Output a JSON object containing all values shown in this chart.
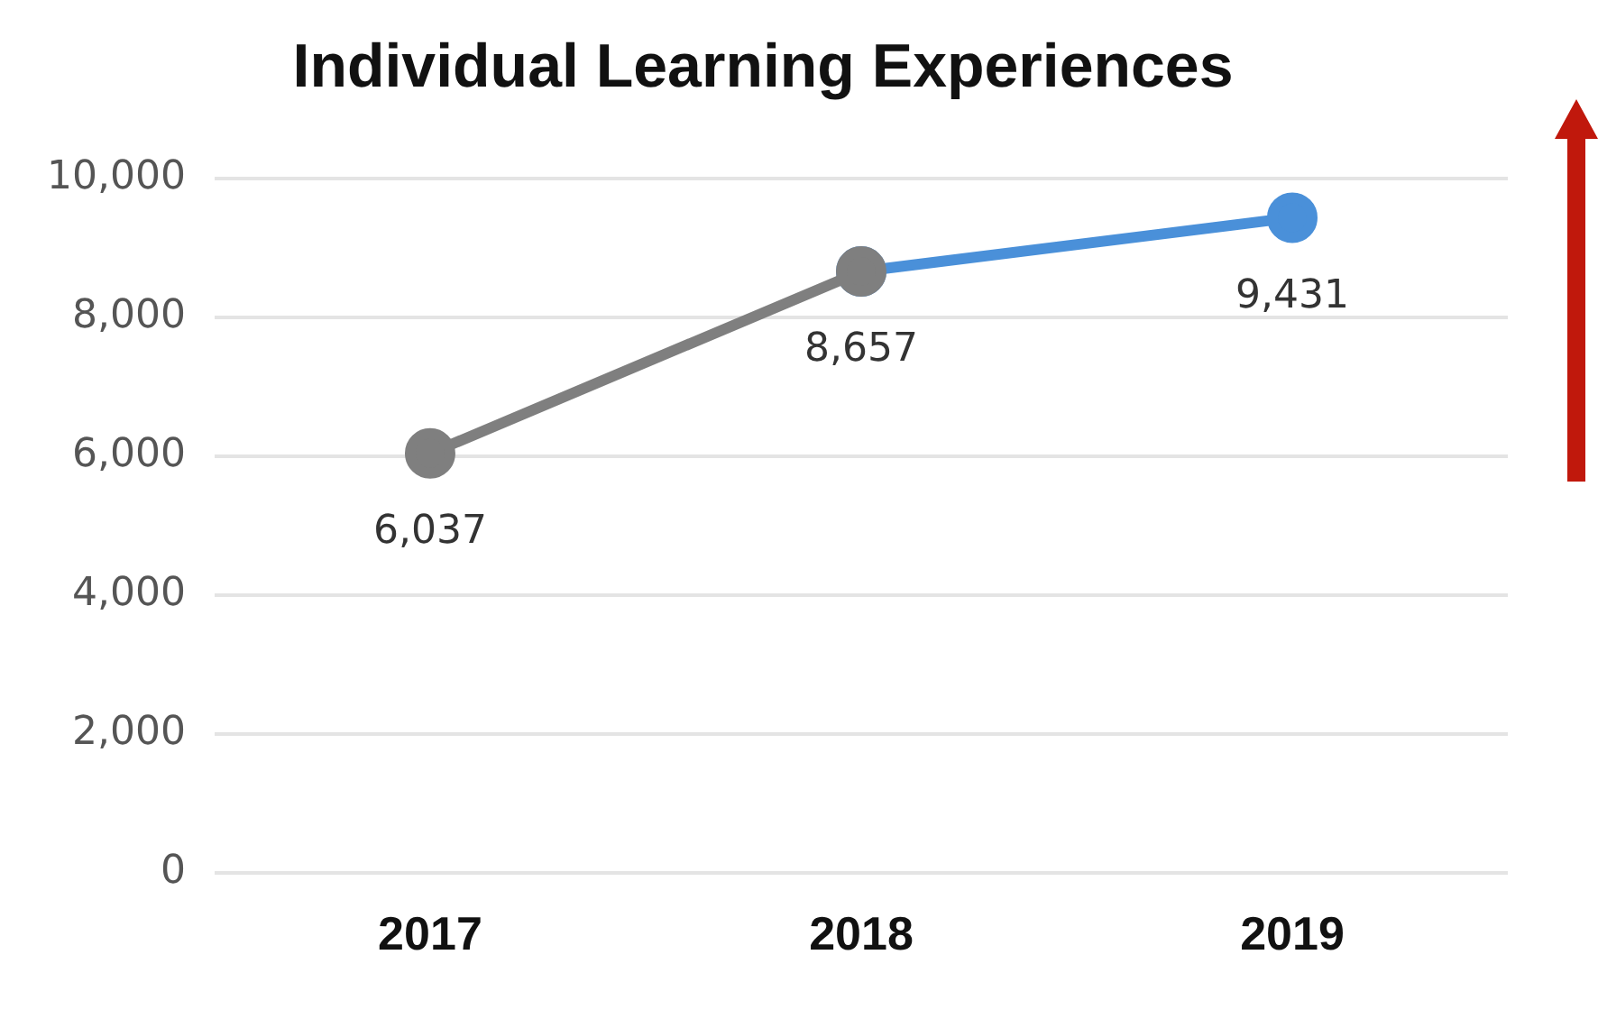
{
  "chart_data": {
    "type": "line",
    "title": "Individual Learning Experiences",
    "categories": [
      "2017",
      "2018",
      "2019"
    ],
    "series": [
      {
        "color": "#7f7f7f",
        "values": [
          6037,
          8657,
          null
        ],
        "value_labels": [
          "6,037",
          null,
          null
        ]
      },
      {
        "color": "#4a90d9",
        "values": [
          null,
          8657,
          9431
        ],
        "value_labels": [
          null,
          "8,657",
          "9,431"
        ]
      }
    ],
    "ylim": [
      0,
      10000
    ],
    "yticks": [
      0,
      {
        "value": 2000,
        "label": "2,000"
      },
      {
        "value": 4000,
        "label": "4,000"
      },
      {
        "value": 6000,
        "label": "6,000"
      },
      {
        "value": 8000,
        "label": "8,000"
      },
      {
        "value": 10000,
        "label": "10,000"
      }
    ],
    "grid": "y",
    "legend": false,
    "marker": "circle",
    "line_style": "solid"
  }
}
